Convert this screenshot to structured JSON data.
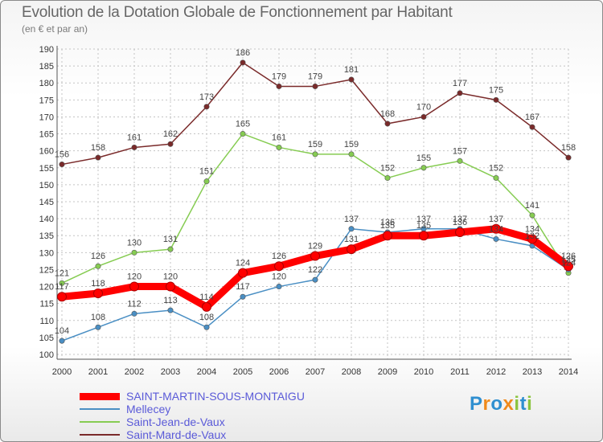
{
  "title": "Evolution de la Dotation Globale de Fonctionnement par Habitant",
  "subtitle": "(en € et par an)",
  "brand": {
    "letters": [
      "P",
      "r",
      "o",
      "x",
      "i",
      "t",
      "i"
    ],
    "colors": [
      "#2f8fd0",
      "#f08a1c",
      "#2f8fd0",
      "#f08a1c",
      "#8bc43f",
      "#2f8fd0",
      "#8bc43f"
    ]
  },
  "chart_data": {
    "type": "line",
    "x": [
      "2000",
      "2001",
      "2002",
      "2003",
      "2004",
      "2005",
      "2006",
      "2007",
      "2008",
      "2009",
      "2010",
      "2011",
      "2012",
      "2013",
      "2014"
    ],
    "ylim": [
      100,
      190
    ],
    "yticks": [
      "100",
      "105",
      "110",
      "115",
      "120",
      "125",
      "130",
      "135",
      "140",
      "145",
      "150",
      "155",
      "160",
      "165",
      "170",
      "175",
      "180",
      "185",
      "190"
    ],
    "grid": true,
    "legend_position": "bottom-left",
    "series": [
      {
        "name": "Saint-Mard-de-Vaux",
        "color": "#7a2a2a",
        "values": [
          156,
          158,
          161,
          162,
          173,
          186,
          179,
          179,
          181,
          168,
          170,
          177,
          175,
          167,
          158
        ]
      },
      {
        "name": "Saint-Jean-de-Vaux",
        "color": "#86cc52",
        "values": [
          121,
          126,
          130,
          131,
          151,
          165,
          161,
          159,
          159,
          152,
          155,
          157,
          152,
          141,
          124
        ]
      },
      {
        "name": "Mellecey",
        "color": "#4a8fc4",
        "values": [
          104,
          108,
          112,
          113,
          108,
          117,
          120,
          122,
          137,
          136,
          137,
          137,
          134,
          132,
          125
        ]
      },
      {
        "name": "SAINT-MARTIN-SOUS-MONTAIGU",
        "color": "#ff0000",
        "values": [
          117,
          118,
          120,
          120,
          114,
          124,
          126,
          129,
          131,
          135,
          135,
          136,
          137,
          134,
          126
        ]
      }
    ]
  }
}
